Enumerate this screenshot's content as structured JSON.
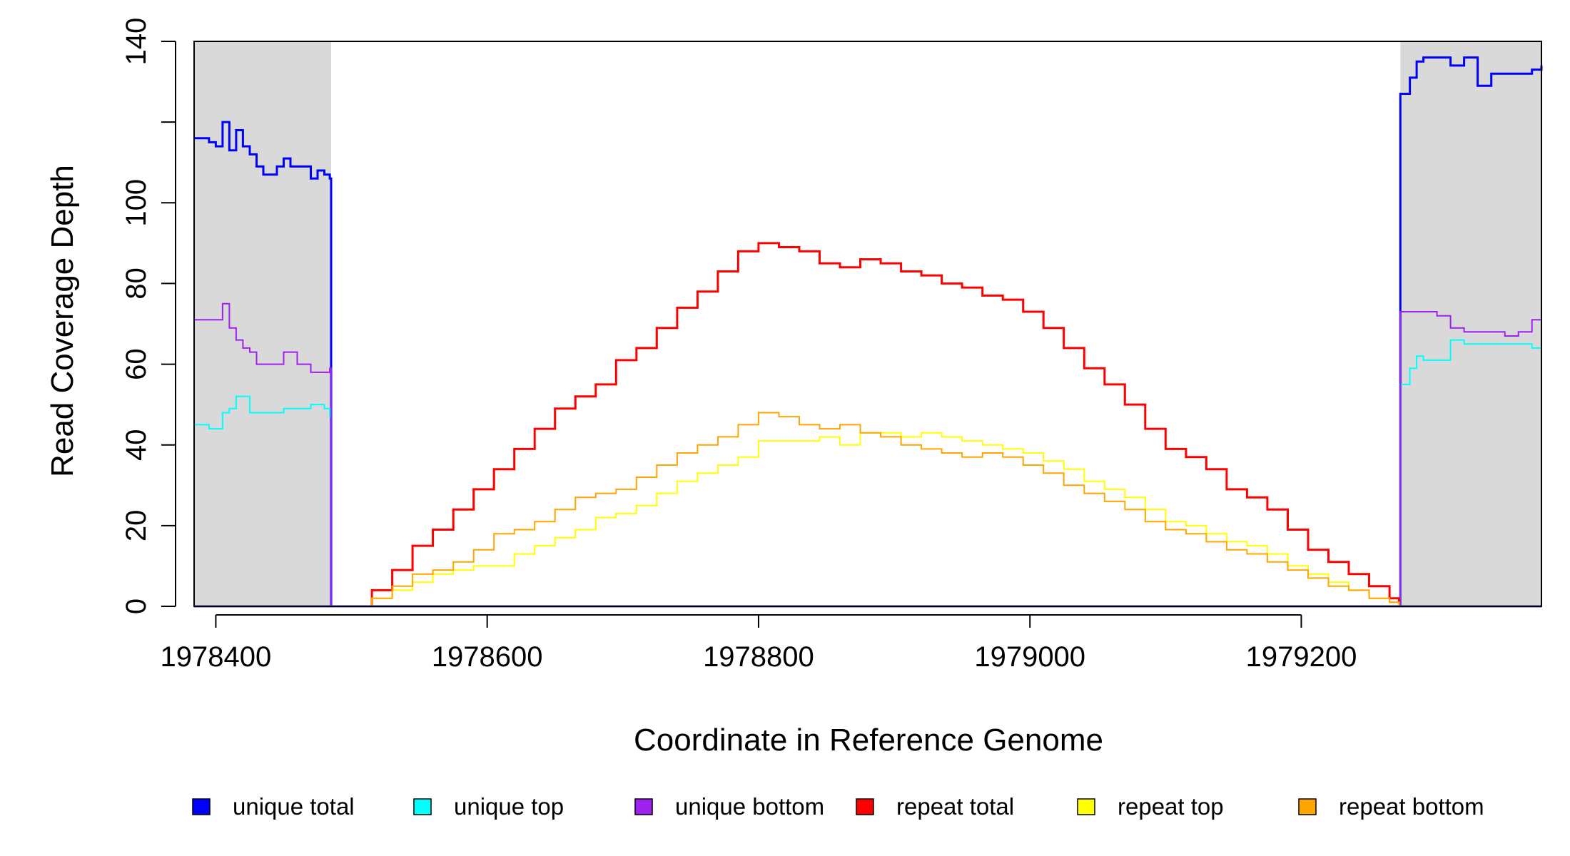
{
  "chart_data": {
    "type": "line",
    "title": "",
    "xlabel": "Coordinate in Reference Genome",
    "ylabel": "Read Coverage Depth",
    "xlim": [
      1978384,
      1979377
    ],
    "ylim": [
      0,
      140
    ],
    "x_ticks": [
      1978400,
      1978600,
      1978800,
      1979000,
      1979200
    ],
    "x_tick_labels": [
      "1978400",
      "1978600",
      "1978800",
      "1979000",
      "1979200"
    ],
    "y_ticks": [
      0,
      20,
      40,
      60,
      80,
      100,
      120,
      140
    ],
    "y_tick_labels": [
      "0",
      "20",
      "40",
      "60",
      "80",
      "100",
      "",
      "140"
    ],
    "grid": false,
    "legend_position": "bottom",
    "shaded_regions": [
      {
        "x_start": 1978384,
        "x_end": 1978485,
        "color": "#d9d9d9"
      },
      {
        "x_start": 1979273,
        "x_end": 1979377,
        "color": "#d9d9d9"
      }
    ],
    "series": [
      {
        "name": "unique total",
        "color": "#0000ff",
        "x": [
          1978384,
          1978395,
          1978400,
          1978405,
          1978410,
          1978415,
          1978420,
          1978425,
          1978430,
          1978435,
          1978440,
          1978445,
          1978450,
          1978455,
          1978460,
          1978465,
          1978470,
          1978475,
          1978480,
          1978484,
          1978485,
          1978485,
          1979273,
          1979273,
          1979280,
          1979285,
          1979290,
          1979300,
          1979310,
          1979320,
          1979330,
          1979340,
          1979350,
          1979360,
          1979370,
          1979377
        ],
        "y": [
          116,
          115,
          114,
          120,
          113,
          118,
          114,
          112,
          109,
          107,
          107,
          109,
          111,
          109,
          109,
          109,
          106,
          108,
          107,
          106,
          106,
          0,
          0,
          127,
          131,
          135,
          136,
          136,
          134,
          136,
          129,
          132,
          132,
          132,
          133,
          134
        ]
      },
      {
        "name": "unique top",
        "color": "#00ffff",
        "x": [
          1978384,
          1978395,
          1978400,
          1978405,
          1978410,
          1978415,
          1978420,
          1978425,
          1978430,
          1978440,
          1978450,
          1978460,
          1978470,
          1978480,
          1978484,
          1978485,
          1978485,
          1979273,
          1979273,
          1979280,
          1979285,
          1979290,
          1979300,
          1979310,
          1979320,
          1979330,
          1979340,
          1979350,
          1979360,
          1979370,
          1979377
        ],
        "y": [
          45,
          44,
          44,
          48,
          49,
          52,
          52,
          48,
          48,
          48,
          49,
          49,
          50,
          49,
          47,
          47,
          0,
          0,
          55,
          59,
          62,
          61,
          61,
          66,
          65,
          65,
          65,
          65,
          65,
          64,
          64
        ]
      },
      {
        "name": "unique bottom",
        "color": "#a020f0",
        "x": [
          1978384,
          1978395,
          1978400,
          1978405,
          1978410,
          1978415,
          1978420,
          1978425,
          1978430,
          1978440,
          1978450,
          1978460,
          1978470,
          1978480,
          1978484,
          1978485,
          1978485,
          1979273,
          1979273,
          1979280,
          1979290,
          1979300,
          1979310,
          1979320,
          1979330,
          1979340,
          1979350,
          1979360,
          1979370,
          1979377
        ],
        "y": [
          71,
          71,
          71,
          75,
          69,
          66,
          64,
          63,
          60,
          60,
          63,
          60,
          58,
          58,
          59,
          59,
          0,
          0,
          73,
          73,
          73,
          72,
          69,
          68,
          68,
          68,
          67,
          68,
          71,
          70
        ]
      },
      {
        "name": "repeat total",
        "color": "#ff0000",
        "x": [
          1978485,
          1978500,
          1978515,
          1978530,
          1978545,
          1978560,
          1978575,
          1978590,
          1978605,
          1978620,
          1978635,
          1978650,
          1978665,
          1978680,
          1978695,
          1978710,
          1978725,
          1978740,
          1978755,
          1978770,
          1978785,
          1978800,
          1978815,
          1978830,
          1978845,
          1978860,
          1978875,
          1978890,
          1978905,
          1978920,
          1978935,
          1978950,
          1978965,
          1978980,
          1978995,
          1979010,
          1979025,
          1979040,
          1979055,
          1979070,
          1979085,
          1979100,
          1979115,
          1979130,
          1979145,
          1979160,
          1979175,
          1979190,
          1979205,
          1979220,
          1979235,
          1979250,
          1979265,
          1979272
        ],
        "y": [
          0,
          0,
          4,
          9,
          15,
          19,
          24,
          29,
          34,
          39,
          44,
          49,
          52,
          55,
          61,
          64,
          69,
          74,
          78,
          83,
          88,
          90,
          89,
          88,
          85,
          84,
          86,
          85,
          83,
          82,
          80,
          79,
          77,
          76,
          73,
          69,
          64,
          59,
          55,
          50,
          44,
          39,
          37,
          34,
          29,
          27,
          24,
          19,
          14,
          11,
          8,
          5,
          2,
          1
        ]
      },
      {
        "name": "repeat top",
        "color": "#ffff00",
        "x": [
          1978485,
          1978500,
          1978515,
          1978530,
          1978545,
          1978560,
          1978575,
          1978590,
          1978605,
          1978620,
          1978635,
          1978650,
          1978665,
          1978680,
          1978695,
          1978710,
          1978725,
          1978740,
          1978755,
          1978770,
          1978785,
          1978800,
          1978815,
          1978830,
          1978845,
          1978860,
          1978875,
          1978890,
          1978905,
          1978920,
          1978935,
          1978950,
          1978965,
          1978980,
          1978995,
          1979010,
          1979025,
          1979040,
          1979055,
          1979070,
          1979085,
          1979100,
          1979115,
          1979130,
          1979145,
          1979160,
          1979175,
          1979190,
          1979205,
          1979220,
          1979235,
          1979250,
          1979265,
          1979272
        ],
        "y": [
          0,
          0,
          2,
          4,
          6,
          8,
          9,
          10,
          10,
          13,
          15,
          17,
          19,
          22,
          23,
          25,
          28,
          31,
          33,
          35,
          37,
          41,
          41,
          41,
          42,
          40,
          43,
          43,
          42,
          43,
          42,
          41,
          40,
          39,
          38,
          36,
          34,
          31,
          29,
          27,
          24,
          21,
          20,
          18,
          16,
          15,
          13,
          10,
          8,
          6,
          4,
          2,
          1,
          0
        ]
      },
      {
        "name": "repeat bottom",
        "color": "#ffa500",
        "x": [
          1978485,
          1978500,
          1978515,
          1978530,
          1978545,
          1978560,
          1978575,
          1978590,
          1978605,
          1978620,
          1978635,
          1978650,
          1978665,
          1978680,
          1978695,
          1978710,
          1978725,
          1978740,
          1978755,
          1978770,
          1978785,
          1978800,
          1978815,
          1978830,
          1978845,
          1978860,
          1978875,
          1978890,
          1978905,
          1978920,
          1978935,
          1978950,
          1978965,
          1978980,
          1978995,
          1979010,
          1979025,
          1979040,
          1979055,
          1979070,
          1979085,
          1979100,
          1979115,
          1979130,
          1979145,
          1979160,
          1979175,
          1979190,
          1979205,
          1979220,
          1979235,
          1979250,
          1979265,
          1979272
        ],
        "y": [
          0,
          0,
          2,
          5,
          8,
          9,
          11,
          14,
          18,
          19,
          21,
          24,
          27,
          28,
          29,
          32,
          35,
          38,
          40,
          42,
          45,
          48,
          47,
          45,
          44,
          45,
          43,
          42,
          40,
          39,
          38,
          37,
          38,
          37,
          35,
          33,
          30,
          28,
          26,
          24,
          21,
          19,
          18,
          16,
          14,
          13,
          11,
          9,
          7,
          5,
          4,
          2,
          1,
          0
        ]
      }
    ]
  }
}
